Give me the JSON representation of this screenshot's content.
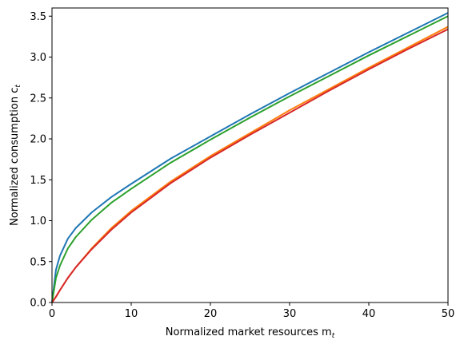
{
  "chart_data": {
    "type": "line",
    "title": "",
    "xlabel": "Normalized market resources m",
    "xlabel_sub": "t",
    "ylabel": "Normalized consumption c",
    "ylabel_sub": "t",
    "xlim": [
      0,
      50
    ],
    "ylim": [
      0,
      3.6
    ],
    "xticks": [
      0,
      10,
      20,
      30,
      40,
      50
    ],
    "xtick_labels": [
      "0",
      "10",
      "20",
      "30",
      "40",
      "50"
    ],
    "yticks": [
      0.0,
      0.5,
      1.0,
      1.5,
      2.0,
      2.5,
      3.0,
      3.5
    ],
    "ytick_labels": [
      "0.0",
      "0.5",
      "1.0",
      "1.5",
      "2.0",
      "2.5",
      "3.0",
      "3.5"
    ],
    "grid": false,
    "legend": "none",
    "x": [
      0,
      0.5,
      1,
      2,
      3,
      5,
      7.5,
      10,
      15,
      20,
      25,
      30,
      35,
      40,
      45,
      50
    ],
    "series": [
      {
        "color": "#1f77b4",
        "values": [
          0.0,
          0.4,
          0.57,
          0.78,
          0.91,
          1.1,
          1.29,
          1.45,
          1.76,
          2.03,
          2.3,
          2.56,
          2.81,
          3.06,
          3.3,
          3.54
        ]
      },
      {
        "color": "#ff7f0e",
        "values": [
          0.0,
          0.07,
          0.15,
          0.3,
          0.43,
          0.66,
          0.91,
          1.12,
          1.48,
          1.79,
          2.07,
          2.35,
          2.61,
          2.87,
          3.12,
          3.37
        ]
      },
      {
        "color": "#2ca02c",
        "values": [
          0.0,
          0.3,
          0.45,
          0.66,
          0.8,
          1.01,
          1.22,
          1.39,
          1.71,
          1.99,
          2.26,
          2.52,
          2.77,
          3.02,
          3.26,
          3.5
        ]
      },
      {
        "color": "#d62728",
        "values": [
          0.0,
          0.07,
          0.15,
          0.3,
          0.43,
          0.65,
          0.89,
          1.1,
          1.46,
          1.77,
          2.05,
          2.32,
          2.59,
          2.85,
          3.1,
          3.34
        ]
      }
    ]
  }
}
